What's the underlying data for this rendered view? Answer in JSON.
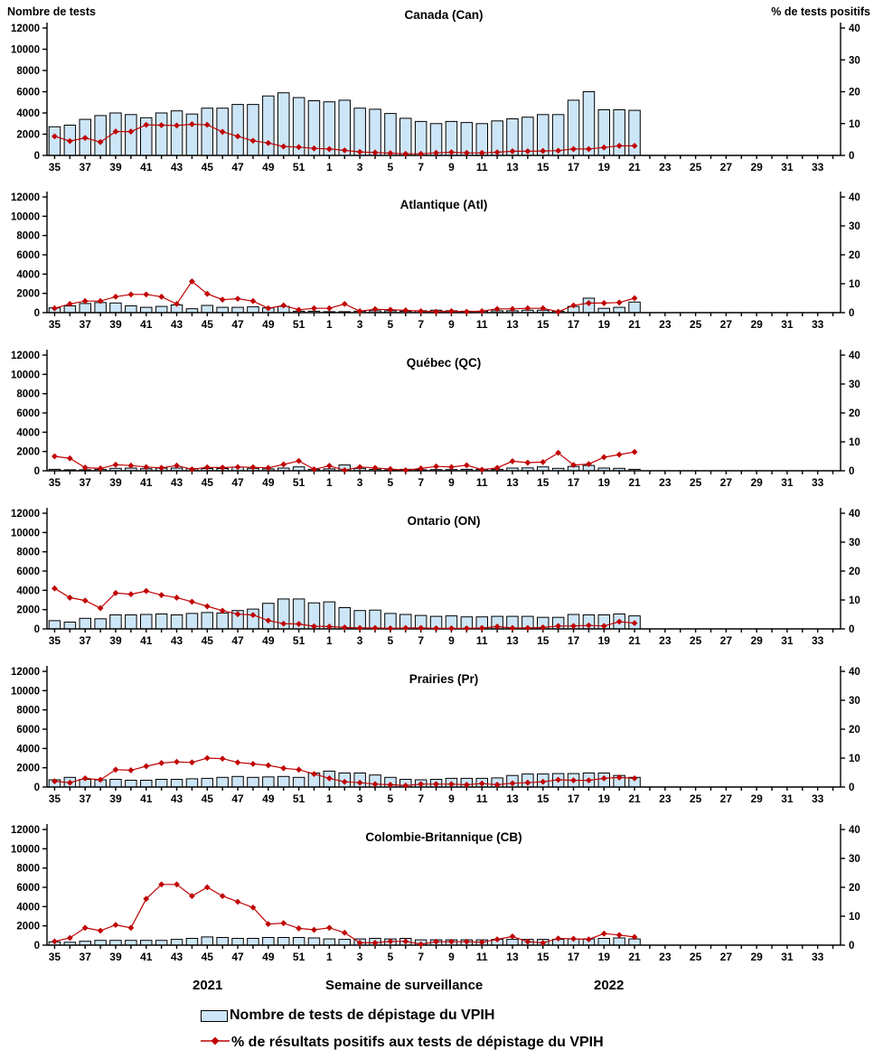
{
  "header": {
    "left_axis_label": "Nombre de tests",
    "right_axis_label": "% de tests positifs"
  },
  "footer": {
    "year_left": "2021",
    "x_axis_label": "Semaine de surveillance",
    "year_right": "2022"
  },
  "legend": [
    {
      "swatch": "bar-swatch",
      "label": "Nombre de tests de dépistage du VPIH"
    },
    {
      "swatch": "line-diamond-swatch",
      "label": "% de résultats positifs aux tests de dépistage du VPIH"
    }
  ],
  "colors": {
    "bar_fill": "#cde6f7",
    "bar_stroke": "#000000",
    "line": "#c00000",
    "axis": "#000000"
  },
  "chart_data": {
    "type": "bar+line",
    "x_label": "Semaine de surveillance",
    "left_axis": {
      "label": "Nombre de tests",
      "ylim": [
        0,
        12000
      ],
      "tick_step": 2000
    },
    "right_axis": {
      "label": "% de tests positifs",
      "ylim": [
        0,
        40
      ],
      "tick_step": 10
    },
    "x_tick_labels": [
      35,
      37,
      39,
      41,
      43,
      45,
      47,
      49,
      51,
      1,
      3,
      5,
      7,
      9,
      11,
      13,
      15,
      17,
      19,
      21,
      23,
      25,
      27,
      29,
      31,
      33
    ],
    "weeks": [
      35,
      36,
      37,
      38,
      39,
      40,
      41,
      42,
      43,
      44,
      45,
      46,
      47,
      48,
      49,
      50,
      51,
      52,
      1,
      2,
      3,
      4,
      5,
      6,
      7,
      8,
      9,
      10,
      11,
      12,
      13,
      14,
      15,
      16,
      17,
      18,
      19,
      20,
      21
    ],
    "axis_week_span": {
      "start_week": 35,
      "weeks_in_2021": 18,
      "weeks_in_2022": 34
    },
    "panels": [
      {
        "title": "Canada (Can)",
        "tests": [
          2700,
          2850,
          3400,
          3750,
          4000,
          3850,
          3550,
          4000,
          4200,
          3900,
          4450,
          4450,
          4800,
          4800,
          5600,
          5900,
          5450,
          5150,
          5050,
          5200,
          4450,
          4350,
          3950,
          3500,
          3200,
          3000,
          3200,
          3100,
          3000,
          3250,
          3450,
          3600,
          3850,
          3850,
          5200,
          6000,
          4300,
          4300,
          4250
        ],
        "pct_positive": [
          6,
          4.5,
          5.5,
          4.2,
          7.5,
          7.5,
          9.6,
          9.5,
          9.4,
          9.8,
          9.6,
          7.4,
          6,
          4.6,
          3.9,
          2.8,
          2.6,
          2.2,
          2,
          1.6,
          1.1,
          0.9,
          0.7,
          0.5,
          0.5,
          0.8,
          1,
          0.8,
          0.8,
          1,
          1.3,
          1.3,
          1.4,
          1.5,
          2,
          2,
          2.5,
          3,
          3
        ]
      },
      {
        "title": "Atlantique (Atl)",
        "tests": [
          500,
          700,
          950,
          1050,
          1000,
          700,
          550,
          650,
          800,
          400,
          750,
          550,
          550,
          600,
          500,
          650,
          150,
          150,
          100,
          100,
          150,
          200,
          200,
          150,
          200,
          250,
          200,
          150,
          150,
          200,
          200,
          250,
          250,
          150,
          650,
          1500,
          450,
          550,
          1100
        ],
        "pct_positive": [
          1.5,
          3,
          4,
          4,
          5.5,
          6.3,
          6.3,
          5.5,
          3,
          10.8,
          6.5,
          4.5,
          4.8,
          4,
          1.5,
          2.5,
          1,
          1.5,
          1.5,
          3,
          0.5,
          1.2,
          1,
          0.8,
          0.5,
          0.3,
          0.5,
          0.3,
          0.5,
          1.3,
          1.3,
          1.5,
          1.5,
          0.3,
          2.5,
          3.3,
          3.3,
          3.5,
          5
        ]
      },
      {
        "title": "Québec (QC)",
        "tests": [
          150,
          100,
          100,
          150,
          250,
          280,
          220,
          280,
          280,
          230,
          230,
          230,
          380,
          250,
          200,
          280,
          400,
          150,
          200,
          600,
          250,
          150,
          80,
          150,
          100,
          120,
          120,
          150,
          150,
          150,
          280,
          300,
          400,
          250,
          450,
          550,
          280,
          250,
          150
        ],
        "pct_positive": [
          5,
          4.3,
          1.1,
          0.8,
          2.1,
          1.8,
          1.3,
          1,
          1.8,
          0.5,
          1.2,
          1.1,
          1.3,
          1.2,
          1,
          2.2,
          3.4,
          0.5,
          1.7,
          0.2,
          1.3,
          1,
          0.6,
          0.2,
          0.8,
          1.5,
          1.3,
          1.9,
          0.4,
          1,
          3.3,
          2.8,
          3,
          6.2,
          2,
          2.3,
          4.7,
          5.6,
          6.5
        ]
      },
      {
        "title": "Ontario (ON)",
        "tests": [
          850,
          700,
          1100,
          1050,
          1450,
          1450,
          1500,
          1550,
          1450,
          1600,
          1700,
          1650,
          1900,
          2050,
          2650,
          3100,
          3100,
          2700,
          2800,
          2200,
          1900,
          1950,
          1600,
          1500,
          1400,
          1300,
          1350,
          1250,
          1250,
          1300,
          1300,
          1300,
          1200,
          1200,
          1500,
          1450,
          1450,
          1550,
          1350
        ],
        "pct_positive": [
          14,
          10.8,
          9.8,
          7.2,
          12.4,
          12,
          13.1,
          11.7,
          10.8,
          9.4,
          7.8,
          6.3,
          5.1,
          4.8,
          2.9,
          1.8,
          1.7,
          0.9,
          0.8,
          0.5,
          0.3,
          0.3,
          0.2,
          0.3,
          0.3,
          0.2,
          0.2,
          0.2,
          0.3,
          0.8,
          0.3,
          0.3,
          0.5,
          1,
          1,
          1.2,
          1,
          2.5,
          2
        ]
      },
      {
        "title": "Prairies (Pr)",
        "tests": [
          750,
          1000,
          800,
          750,
          800,
          700,
          700,
          800,
          800,
          850,
          900,
          1000,
          1100,
          1000,
          1050,
          1100,
          1000,
          1450,
          1650,
          1450,
          1450,
          1250,
          1000,
          800,
          750,
          800,
          900,
          900,
          900,
          950,
          1200,
          1350,
          1350,
          1400,
          1400,
          1450,
          1450,
          1200,
          1000
        ],
        "pct_positive": [
          2,
          1.5,
          3,
          2.5,
          6,
          5.8,
          7.2,
          8.3,
          8.7,
          8.5,
          10,
          9.8,
          8.5,
          8,
          7.5,
          6.5,
          6,
          4.5,
          3,
          1.8,
          1.5,
          1,
          0.8,
          0.5,
          1,
          1,
          1,
          0.8,
          1.2,
          0.8,
          1.3,
          1.5,
          1.8,
          2.5,
          2.3,
          2.3,
          3,
          3.3,
          3
        ]
      },
      {
        "title": "Colombie-Britannique (CB)",
        "tests": [
          350,
          300,
          400,
          500,
          500,
          500,
          500,
          500,
          600,
          700,
          850,
          800,
          700,
          700,
          800,
          800,
          800,
          750,
          650,
          600,
          650,
          700,
          650,
          700,
          550,
          550,
          550,
          550,
          550,
          600,
          600,
          600,
          600,
          600,
          650,
          650,
          700,
          750,
          650
        ],
        "pct_positive": [
          1.3,
          2.5,
          6,
          5,
          7,
          6,
          16,
          21,
          21,
          17,
          20,
          17,
          15,
          13,
          7.3,
          7.6,
          5.8,
          5.3,
          6,
          4.3,
          0.8,
          0.8,
          1.3,
          1.3,
          0.3,
          1.2,
          1.2,
          1.2,
          1,
          2,
          3,
          1.2,
          0.8,
          2.3,
          2.2,
          2,
          4,
          3.5,
          2.8
        ]
      }
    ]
  }
}
